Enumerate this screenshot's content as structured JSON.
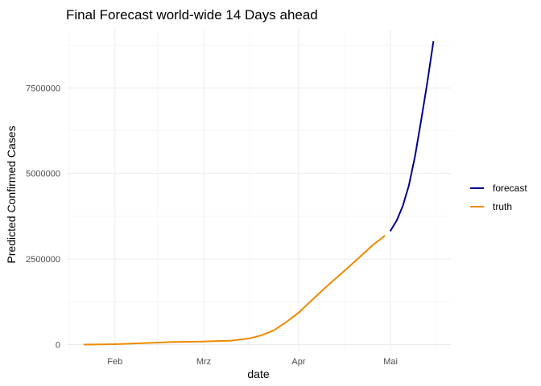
{
  "chart_data": {
    "type": "line",
    "title": "Final Forecast world-wide 14 Days ahead",
    "xlabel": "date",
    "ylabel": "Predicted Confirmed Cases",
    "x_range": [
      "2020-01-22",
      "2020-05-15"
    ],
    "ylim": [
      -200000,
      9200000
    ],
    "x_ticks": [
      {
        "date": "2020-02-01",
        "label": "Feb"
      },
      {
        "date": "2020-03-01",
        "label": "Mrz"
      },
      {
        "date": "2020-04-01",
        "label": "Apr"
      },
      {
        "date": "2020-05-01",
        "label": "Mai"
      }
    ],
    "y_ticks": [
      0,
      2500000,
      5000000,
      7500000
    ],
    "y_tick_labels": [
      "0",
      "2500000",
      "5000000",
      "7500000"
    ],
    "grid": true,
    "legend_position": "right",
    "series": [
      {
        "name": "truth",
        "color": "#ee8a00",
        "points": [
          [
            "2020-01-22",
            555
          ],
          [
            "2020-01-25",
            2000
          ],
          [
            "2020-02-01",
            12000
          ],
          [
            "2020-02-10",
            40000
          ],
          [
            "2020-02-20",
            76000
          ],
          [
            "2020-03-01",
            88000
          ],
          [
            "2020-03-10",
            115000
          ],
          [
            "2020-03-16",
            180000
          ],
          [
            "2020-03-20",
            275000
          ],
          [
            "2020-03-24",
            420000
          ],
          [
            "2020-03-28",
            660000
          ],
          [
            "2020-04-01",
            930000
          ],
          [
            "2020-04-05",
            1270000
          ],
          [
            "2020-04-10",
            1690000
          ],
          [
            "2020-04-15",
            2080000
          ],
          [
            "2020-04-20",
            2480000
          ],
          [
            "2020-04-25",
            2890000
          ],
          [
            "2020-04-29",
            3170000
          ]
        ]
      },
      {
        "name": "forecast",
        "color": "#00008b",
        "points": [
          [
            "2020-05-01",
            3330000
          ],
          [
            "2020-05-03",
            3620000
          ],
          [
            "2020-05-05",
            4050000
          ],
          [
            "2020-05-07",
            4650000
          ],
          [
            "2020-05-09",
            5500000
          ],
          [
            "2020-05-11",
            6550000
          ],
          [
            "2020-05-13",
            7650000
          ],
          [
            "2020-05-15",
            8850000
          ]
        ]
      }
    ]
  }
}
